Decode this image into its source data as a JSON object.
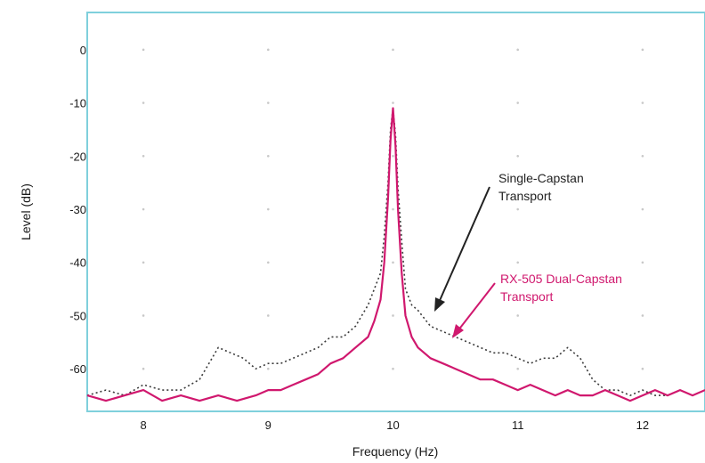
{
  "chart_data": {
    "type": "line",
    "title": "",
    "xlabel": "Frequency (Hz)",
    "ylabel": "Level (dB)",
    "xlim": [
      7.55,
      12.5
    ],
    "ylim": [
      -68,
      7
    ],
    "xticks": [
      8,
      9,
      10,
      11,
      12
    ],
    "xtick_labels": [
      "8",
      "9",
      "10",
      "11",
      "12"
    ],
    "yticks": [
      0,
      -10,
      -20,
      -30,
      -40,
      -50,
      -60
    ],
    "ytick_labels": [
      "0",
      "-10",
      "-20",
      "-30",
      "-40",
      "-50",
      "-60"
    ],
    "grid": true,
    "legend": "none (direct annotations with arrows)",
    "colors": {
      "frame": "#7fd0dc",
      "grid": "#c8c8c8",
      "single": "#3a3a3a",
      "dual": "#d0186e"
    },
    "series": [
      {
        "name": "Single-Capstan Transport",
        "style": "dotted",
        "x": [
          7.55,
          7.7,
          7.85,
          8.0,
          8.15,
          8.3,
          8.45,
          8.5,
          8.55,
          8.6,
          8.7,
          8.8,
          8.9,
          9.0,
          9.1,
          9.2,
          9.3,
          9.4,
          9.5,
          9.6,
          9.7,
          9.8,
          9.85,
          9.9,
          9.93,
          9.96,
          9.98,
          10.0,
          10.02,
          10.04,
          10.07,
          10.1,
          10.15,
          10.2,
          10.3,
          10.4,
          10.5,
          10.6,
          10.7,
          10.8,
          10.9,
          11.0,
          11.1,
          11.2,
          11.3,
          11.4,
          11.45,
          11.5,
          11.6,
          11.7,
          11.8,
          11.9,
          12.0,
          12.1,
          12.2,
          12.3,
          12.4,
          12.5
        ],
        "values": [
          -65,
          -64,
          -65,
          -63,
          -64,
          -64,
          -62,
          -60,
          -58,
          -56,
          -57,
          -58,
          -60,
          -59,
          -59,
          -58,
          -57,
          -56,
          -54,
          -54,
          -52,
          -48,
          -45,
          -42,
          -35,
          -25,
          -15,
          -11,
          -16,
          -26,
          -36,
          -45,
          -48,
          -49,
          -52,
          -53,
          -54,
          -55,
          -56,
          -57,
          -57,
          -58,
          -59,
          -58,
          -58,
          -56,
          -57,
          -58,
          -62,
          -64,
          -64,
          -65,
          -64,
          -65,
          -65,
          -64,
          -65,
          -64
        ]
      },
      {
        "name": "RX-505 Dual-Capstan Transport",
        "style": "solid",
        "x": [
          7.55,
          7.7,
          7.85,
          8.0,
          8.15,
          8.3,
          8.45,
          8.6,
          8.75,
          8.9,
          9.0,
          9.1,
          9.2,
          9.3,
          9.4,
          9.5,
          9.6,
          9.7,
          9.8,
          9.85,
          9.9,
          9.93,
          9.96,
          9.98,
          10.0,
          10.02,
          10.04,
          10.07,
          10.1,
          10.15,
          10.2,
          10.3,
          10.4,
          10.5,
          10.6,
          10.7,
          10.8,
          10.9,
          11.0,
          11.1,
          11.2,
          11.3,
          11.4,
          11.5,
          11.6,
          11.7,
          11.8,
          11.9,
          12.0,
          12.1,
          12.2,
          12.3,
          12.4,
          12.5
        ],
        "values": [
          -65,
          -66,
          -65,
          -64,
          -66,
          -65,
          -66,
          -65,
          -66,
          -65,
          -64,
          -64,
          -63,
          -62,
          -61,
          -59,
          -58,
          -56,
          -54,
          -51,
          -47,
          -40,
          -28,
          -17,
          -11,
          -18,
          -30,
          -42,
          -50,
          -54,
          -56,
          -58,
          -59,
          -60,
          -61,
          -62,
          -62,
          -63,
          -64,
          -63,
          -64,
          -65,
          -64,
          -65,
          -65,
          -64,
          -65,
          -66,
          -65,
          -64,
          -65,
          -64,
          -65,
          -64
        ]
      }
    ],
    "annotations": [
      {
        "lines": [
          "Single-Capstan",
          "Transport"
        ],
        "series": "Single-Capstan Transport"
      },
      {
        "lines": [
          "RX-505 Dual-Capstan",
          "Transport"
        ],
        "series": "RX-505 Dual-Capstan Transport"
      }
    ]
  }
}
